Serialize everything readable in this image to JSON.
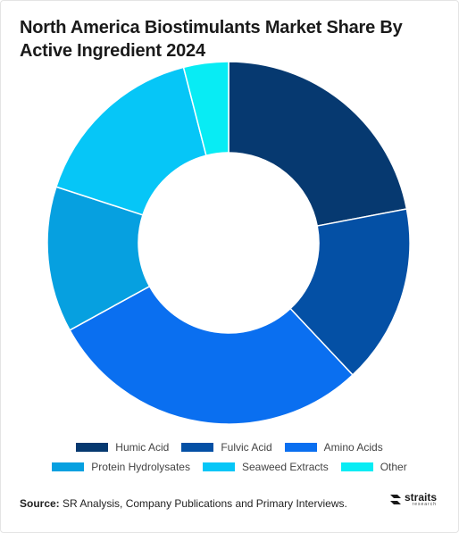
{
  "title": "North America Biostimulants Market Share By Active Ingredient 2024",
  "source": {
    "label": "Source:",
    "text": " SR Analysis, Company Publications and Primary Interviews."
  },
  "logo": {
    "main": "straits",
    "sub": "research"
  },
  "chart_data": {
    "type": "pie",
    "subtype": "donut",
    "title": "North America Biostimulants Market Share By Active Ingredient 2024",
    "legend_position": "bottom",
    "series": [
      {
        "name": "Humic Acid",
        "value": 22,
        "color": "#063970"
      },
      {
        "name": "Fulvic Acid",
        "value": 16,
        "color": "#0450a5"
      },
      {
        "name": "Amino Acids",
        "value": 29,
        "color": "#0a6ff0"
      },
      {
        "name": "Protein Hydrolysates",
        "value": 13,
        "color": "#06a0e0"
      },
      {
        "name": "Seaweed Extracts",
        "value": 16,
        "color": "#06c6f7"
      },
      {
        "name": "Other",
        "value": 4,
        "color": "#08ecf4"
      }
    ]
  }
}
